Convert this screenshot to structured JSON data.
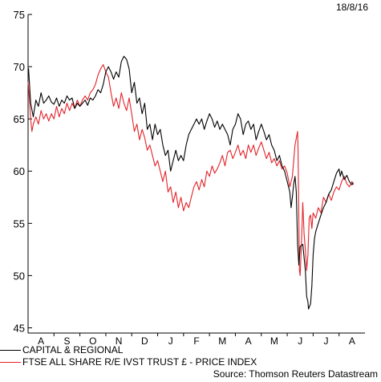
{
  "date_label": "18/8/16",
  "source": "Source: Thomson Reuters Datastream",
  "chart_data": {
    "type": "line",
    "y_ticks": [
      45,
      50,
      55,
      60,
      65,
      70,
      75
    ],
    "ylim": [
      44.5,
      75
    ],
    "x_ticks": [
      "A",
      "S",
      "O",
      "N",
      "D",
      "J",
      "F",
      "M",
      "A",
      "M",
      "J",
      "J",
      "A"
    ],
    "grid": false,
    "legend_placement": "bottom-left",
    "series": [
      {
        "name": "CAPITAL & REGIONAL",
        "color": "#000000",
        "points": [
          [
            0.0,
            69.5
          ],
          [
            0.02,
            69.8
          ],
          [
            0.1,
            66.5
          ],
          [
            0.2,
            65.2
          ],
          [
            0.3,
            66.8
          ],
          [
            0.4,
            66.2
          ],
          [
            0.5,
            67.5
          ],
          [
            0.6,
            66.5
          ],
          [
            0.7,
            66.8
          ],
          [
            0.8,
            67.2
          ],
          [
            0.9,
            66.6
          ],
          [
            1.0,
            66.4
          ],
          [
            1.1,
            67.0
          ],
          [
            1.2,
            66.2
          ],
          [
            1.3,
            66.8
          ],
          [
            1.4,
            66.5
          ],
          [
            1.5,
            67.2
          ],
          [
            1.6,
            66.8
          ],
          [
            1.7,
            67.0
          ],
          [
            1.8,
            66.0
          ],
          [
            1.9,
            66.5
          ],
          [
            2.0,
            66.2
          ],
          [
            2.1,
            66.5
          ],
          [
            2.2,
            66.8
          ],
          [
            2.3,
            66.3
          ],
          [
            2.4,
            67.0
          ],
          [
            2.5,
            66.8
          ],
          [
            2.6,
            67.2
          ],
          [
            2.7,
            67.8
          ],
          [
            2.8,
            67.5
          ],
          [
            2.9,
            68.3
          ],
          [
            3.0,
            69.5
          ],
          [
            3.1,
            70.0
          ],
          [
            3.2,
            69.5
          ],
          [
            3.3,
            68.8
          ],
          [
            3.4,
            69.5
          ],
          [
            3.5,
            69.0
          ],
          [
            3.6,
            70.5
          ],
          [
            3.7,
            71.0
          ],
          [
            3.8,
            70.7
          ],
          [
            3.9,
            69.8
          ],
          [
            4.0,
            67.5
          ],
          [
            4.1,
            68.5
          ],
          [
            4.2,
            66.5
          ],
          [
            4.3,
            67.0
          ],
          [
            4.4,
            65.5
          ],
          [
            4.5,
            66.5
          ],
          [
            4.6,
            64.0
          ],
          [
            4.7,
            64.5
          ],
          [
            4.8,
            63.0
          ],
          [
            4.9,
            64.5
          ],
          [
            5.0,
            63.5
          ],
          [
            5.1,
            64.0
          ],
          [
            5.2,
            62.5
          ],
          [
            5.3,
            61.5
          ],
          [
            5.4,
            62.0
          ],
          [
            5.5,
            60.0
          ],
          [
            5.6,
            61.0
          ],
          [
            5.7,
            62.0
          ],
          [
            5.8,
            61.0
          ],
          [
            5.9,
            61.5
          ],
          [
            6.0,
            61.0
          ],
          [
            6.1,
            62.5
          ],
          [
            6.2,
            63.5
          ],
          [
            6.3,
            64.0
          ],
          [
            6.4,
            64.5
          ],
          [
            6.5,
            65.0
          ],
          [
            6.6,
            64.5
          ],
          [
            6.7,
            65.0
          ],
          [
            6.8,
            64.0
          ],
          [
            6.9,
            64.8
          ],
          [
            7.0,
            65.5
          ],
          [
            7.1,
            65.0
          ],
          [
            7.2,
            64.2
          ],
          [
            7.3,
            64.8
          ],
          [
            7.4,
            64.0
          ],
          [
            7.5,
            64.5
          ],
          [
            7.6,
            64.0
          ],
          [
            7.7,
            63.5
          ],
          [
            7.8,
            62.5
          ],
          [
            7.9,
            64.0
          ],
          [
            8.0,
            64.5
          ],
          [
            8.1,
            65.5
          ],
          [
            8.2,
            65.0
          ],
          [
            8.3,
            63.5
          ],
          [
            8.4,
            64.5
          ],
          [
            8.5,
            64.8
          ],
          [
            8.6,
            64.0
          ],
          [
            8.7,
            64.5
          ],
          [
            8.8,
            63.0
          ],
          [
            8.9,
            63.8
          ],
          [
            9.0,
            64.5
          ],
          [
            9.1,
            63.8
          ],
          [
            9.2,
            63.0
          ],
          [
            9.3,
            63.5
          ],
          [
            9.4,
            62.5
          ],
          [
            9.5,
            62.0
          ],
          [
            9.6,
            61.0
          ],
          [
            9.7,
            61.5
          ],
          [
            9.8,
            60.5
          ],
          [
            9.9,
            60.0
          ],
          [
            10.0,
            59.0
          ],
          [
            10.1,
            58.0
          ],
          [
            10.15,
            56.5
          ],
          [
            10.2,
            57.5
          ],
          [
            10.25,
            58.8
          ],
          [
            10.3,
            59.5
          ],
          [
            10.35,
            58.0
          ],
          [
            10.4,
            53.0
          ],
          [
            10.45,
            51.0
          ],
          [
            10.5,
            52.8
          ],
          [
            10.6,
            53.0
          ],
          [
            10.7,
            50.5
          ],
          [
            10.75,
            48.0
          ],
          [
            10.8,
            47.5
          ],
          [
            10.82,
            46.8
          ],
          [
            10.9,
            47.3
          ],
          [
            10.95,
            49.0
          ],
          [
            11.0,
            52.0
          ],
          [
            11.05,
            53.5
          ],
          [
            11.1,
            54.2
          ],
          [
            11.2,
            55.0
          ],
          [
            11.3,
            55.8
          ],
          [
            11.4,
            56.5
          ],
          [
            11.5,
            57.0
          ],
          [
            11.6,
            57.8
          ],
          [
            11.7,
            58.2
          ],
          [
            11.8,
            59.0
          ],
          [
            11.9,
            59.8
          ],
          [
            12.0,
            60.2
          ],
          [
            12.05,
            59.5
          ],
          [
            12.1,
            60.0
          ],
          [
            12.2,
            59.2
          ],
          [
            12.3,
            59.6
          ],
          [
            12.4,
            59.0
          ],
          [
            12.5,
            58.7
          ],
          [
            12.55,
            58.9
          ]
        ]
      },
      {
        "name": "FTSE ALL SHARE R/E IVST TRUST £ - PRICE INDEX",
        "color": "#e2232a",
        "points": [
          [
            0.0,
            68.5
          ],
          [
            0.05,
            67.0
          ],
          [
            0.1,
            65.0
          ],
          [
            0.15,
            63.8
          ],
          [
            0.2,
            64.5
          ],
          [
            0.3,
            65.2
          ],
          [
            0.4,
            64.5
          ],
          [
            0.5,
            65.8
          ],
          [
            0.6,
            65.0
          ],
          [
            0.7,
            65.5
          ],
          [
            0.8,
            64.8
          ],
          [
            0.9,
            65.5
          ],
          [
            1.0,
            65.0
          ],
          [
            1.1,
            66.2
          ],
          [
            1.2,
            65.2
          ],
          [
            1.3,
            66.0
          ],
          [
            1.4,
            65.5
          ],
          [
            1.5,
            66.5
          ],
          [
            1.6,
            65.8
          ],
          [
            1.7,
            66.5
          ],
          [
            1.8,
            66.0
          ],
          [
            1.9,
            66.8
          ],
          [
            2.0,
            66.2
          ],
          [
            2.1,
            66.8
          ],
          [
            2.2,
            67.2
          ],
          [
            2.3,
            66.8
          ],
          [
            2.4,
            67.5
          ],
          [
            2.5,
            67.8
          ],
          [
            2.6,
            68.3
          ],
          [
            2.7,
            69.2
          ],
          [
            2.8,
            69.8
          ],
          [
            2.9,
            70.2
          ],
          [
            3.0,
            69.5
          ],
          [
            3.1,
            69.0
          ],
          [
            3.2,
            67.5
          ],
          [
            3.3,
            66.2
          ],
          [
            3.4,
            67.0
          ],
          [
            3.5,
            66.0
          ],
          [
            3.6,
            67.5
          ],
          [
            3.7,
            66.5
          ],
          [
            3.8,
            65.8
          ],
          [
            3.9,
            67.0
          ],
          [
            4.0,
            65.5
          ],
          [
            4.1,
            63.8
          ],
          [
            4.2,
            64.5
          ],
          [
            4.3,
            63.0
          ],
          [
            4.4,
            64.0
          ],
          [
            4.5,
            63.2
          ],
          [
            4.6,
            62.0
          ],
          [
            4.7,
            62.5
          ],
          [
            4.8,
            61.5
          ],
          [
            4.9,
            60.5
          ],
          [
            5.0,
            61.0
          ],
          [
            5.1,
            60.0
          ],
          [
            5.2,
            59.0
          ],
          [
            5.3,
            60.0
          ],
          [
            5.4,
            58.0
          ],
          [
            5.5,
            58.5
          ],
          [
            5.6,
            57.0
          ],
          [
            5.7,
            58.0
          ],
          [
            5.8,
            56.5
          ],
          [
            5.9,
            57.5
          ],
          [
            6.0,
            56.2
          ],
          [
            6.1,
            57.0
          ],
          [
            6.2,
            56.5
          ],
          [
            6.3,
            57.5
          ],
          [
            6.4,
            58.5
          ],
          [
            6.5,
            59.0
          ],
          [
            6.6,
            58.2
          ],
          [
            6.7,
            59.2
          ],
          [
            6.8,
            58.5
          ],
          [
            6.9,
            60.0
          ],
          [
            7.0,
            59.5
          ],
          [
            7.1,
            60.5
          ],
          [
            7.2,
            59.8
          ],
          [
            7.3,
            60.2
          ],
          [
            7.4,
            60.8
          ],
          [
            7.5,
            61.5
          ],
          [
            7.6,
            60.5
          ],
          [
            7.7,
            61.8
          ],
          [
            7.8,
            62.0
          ],
          [
            7.9,
            61.2
          ],
          [
            8.0,
            61.8
          ],
          [
            8.1,
            62.5
          ],
          [
            8.2,
            61.5
          ],
          [
            8.3,
            62.0
          ],
          [
            8.4,
            61.2
          ],
          [
            8.5,
            62.5
          ],
          [
            8.6,
            61.8
          ],
          [
            8.7,
            62.5
          ],
          [
            8.8,
            61.5
          ],
          [
            8.9,
            62.2
          ],
          [
            9.0,
            62.8
          ],
          [
            9.1,
            62.0
          ],
          [
            9.2,
            61.2
          ],
          [
            9.3,
            61.8
          ],
          [
            9.4,
            60.8
          ],
          [
            9.5,
            61.2
          ],
          [
            9.6,
            60.5
          ],
          [
            9.7,
            61.0
          ],
          [
            9.8,
            60.2
          ],
          [
            9.9,
            60.5
          ],
          [
            10.0,
            59.8
          ],
          [
            10.1,
            58.5
          ],
          [
            10.2,
            59.5
          ],
          [
            10.3,
            62.5
          ],
          [
            10.4,
            63.8
          ],
          [
            10.42,
            62.0
          ],
          [
            10.47,
            50.5
          ],
          [
            10.5,
            50.0
          ],
          [
            10.55,
            53.0
          ],
          [
            10.6,
            57.0
          ],
          [
            10.65,
            54.0
          ],
          [
            10.7,
            52.5
          ],
          [
            10.75,
            50.5
          ],
          [
            10.8,
            52.0
          ],
          [
            10.85,
            55.5
          ],
          [
            10.9,
            55.8
          ],
          [
            10.95,
            54.5
          ],
          [
            11.0,
            56.0
          ],
          [
            11.1,
            55.5
          ],
          [
            11.2,
            56.5
          ],
          [
            11.3,
            56.0
          ],
          [
            11.4,
            57.5
          ],
          [
            11.5,
            57.0
          ],
          [
            11.6,
            57.8
          ],
          [
            11.7,
            57.2
          ],
          [
            11.8,
            58.0
          ],
          [
            11.9,
            58.5
          ],
          [
            12.0,
            58.2
          ],
          [
            12.1,
            59.0
          ],
          [
            12.2,
            59.5
          ],
          [
            12.3,
            58.8
          ],
          [
            12.4,
            58.5
          ],
          [
            12.5,
            59.0
          ],
          [
            12.55,
            58.7
          ]
        ]
      }
    ]
  }
}
